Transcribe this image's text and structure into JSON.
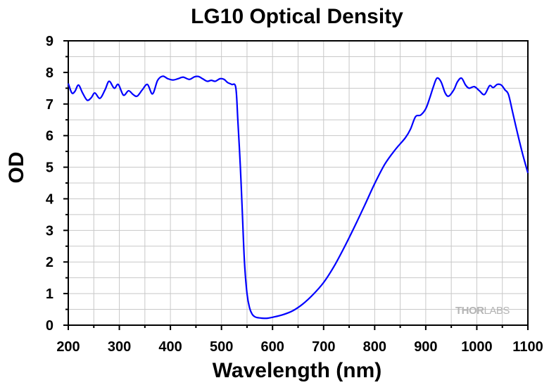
{
  "chart_data": {
    "type": "line",
    "title": "LG10 Optical Density",
    "xlabel": "Wavelength (nm)",
    "ylabel": "OD",
    "xlim": [
      200,
      1100
    ],
    "ylim": [
      0,
      9
    ],
    "x_ticks": [
      200,
      300,
      400,
      500,
      600,
      700,
      800,
      900,
      1000,
      1100
    ],
    "y_ticks": [
      0,
      1,
      2,
      3,
      4,
      5,
      6,
      7,
      8,
      9
    ],
    "grid": true,
    "legend": "none",
    "line_color": "#0000ff",
    "series": [
      {
        "x": [
          200,
          207,
          213,
          220,
          228,
          237,
          245,
          252,
          262,
          272,
          280,
          290,
          298,
          308,
          318,
          327,
          335,
          345,
          355,
          365,
          375,
          385,
          395,
          405,
          415,
          425,
          437,
          447,
          455,
          463,
          472,
          480,
          488,
          497,
          505,
          512,
          520,
          528,
          532,
          537,
          541,
          545,
          550,
          555,
          560,
          565,
          570,
          575,
          580,
          590,
          600,
          620,
          640,
          660,
          680,
          700,
          720,
          740,
          760,
          780,
          800,
          820,
          840,
          860,
          870,
          880,
          890,
          900,
          908,
          915,
          922,
          930,
          938,
          945,
          955,
          962,
          970,
          978,
          985,
          995,
          1005,
          1015,
          1025,
          1032,
          1040,
          1048,
          1055,
          1062,
          1070,
          1080,
          1090,
          1100
        ],
        "y": [
          7.65,
          7.35,
          7.4,
          7.6,
          7.35,
          7.12,
          7.2,
          7.35,
          7.18,
          7.45,
          7.72,
          7.5,
          7.62,
          7.28,
          7.42,
          7.3,
          7.25,
          7.45,
          7.62,
          7.32,
          7.75,
          7.88,
          7.8,
          7.76,
          7.8,
          7.85,
          7.78,
          7.86,
          7.87,
          7.8,
          7.72,
          7.75,
          7.72,
          7.8,
          7.78,
          7.68,
          7.62,
          7.52,
          6.5,
          5.0,
          3.5,
          2.0,
          1.0,
          0.55,
          0.35,
          0.27,
          0.24,
          0.23,
          0.22,
          0.22,
          0.25,
          0.33,
          0.46,
          0.68,
          0.98,
          1.35,
          1.85,
          2.45,
          3.1,
          3.78,
          4.48,
          5.1,
          5.55,
          5.93,
          6.2,
          6.6,
          6.65,
          6.85,
          7.2,
          7.55,
          7.82,
          7.7,
          7.35,
          7.25,
          7.45,
          7.7,
          7.82,
          7.6,
          7.5,
          7.55,
          7.42,
          7.3,
          7.58,
          7.52,
          7.62,
          7.6,
          7.45,
          7.3,
          6.75,
          6.05,
          5.4,
          4.82
        ]
      }
    ]
  },
  "watermark": {
    "part1": "THOR",
    "part2": "LABS"
  }
}
